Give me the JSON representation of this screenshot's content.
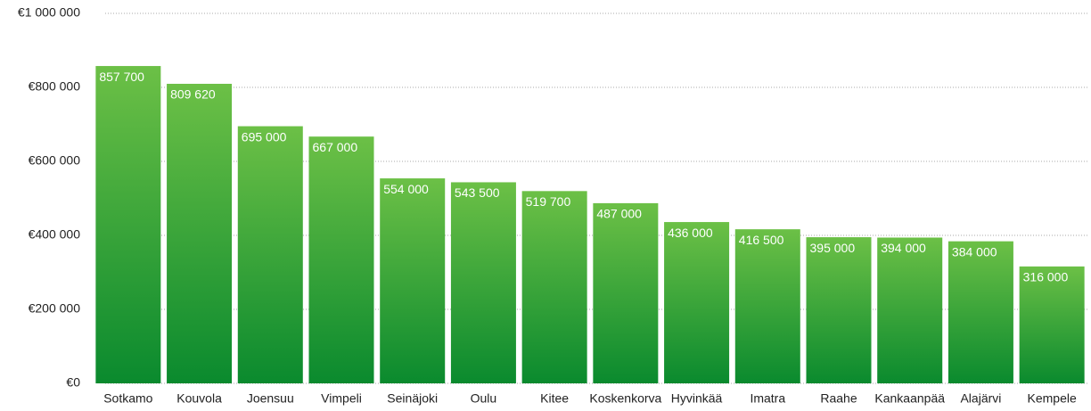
{
  "chart_data": {
    "type": "bar",
    "categories": [
      "Sotkamo",
      "Kouvola",
      "Joensuu",
      "Vimpeli",
      "Seinäjoki",
      "Oulu",
      "Kitee",
      "Koskenkorva",
      "Hyvinkää",
      "Imatra",
      "Raahe",
      "Kankaanpää",
      "Alajärvi",
      "Kempele"
    ],
    "values": [
      857700,
      809620,
      695000,
      667000,
      554000,
      543500,
      519700,
      487000,
      436000,
      416500,
      395000,
      394000,
      384000,
      316000
    ],
    "value_labels": [
      "857 700",
      "809 620",
      "695 000",
      "667 000",
      "554 000",
      "543 500",
      "519 700",
      "487 000",
      "436 000",
      "416 500",
      "395 000",
      "394 000",
      "384 000",
      "316 000"
    ],
    "color": "#4fae3c",
    "ylim": [
      0,
      1000000
    ],
    "yticks": [
      {
        "value": 0,
        "label": "€0"
      },
      {
        "value": 200000,
        "label": "€200 000"
      },
      {
        "value": 400000,
        "label": "€400 000"
      },
      {
        "value": 600000,
        "label": "€600 000"
      },
      {
        "value": 800000,
        "label": "€800 000"
      },
      {
        "value": 1000000,
        "label": "€1 000 000"
      }
    ],
    "grid": true
  }
}
